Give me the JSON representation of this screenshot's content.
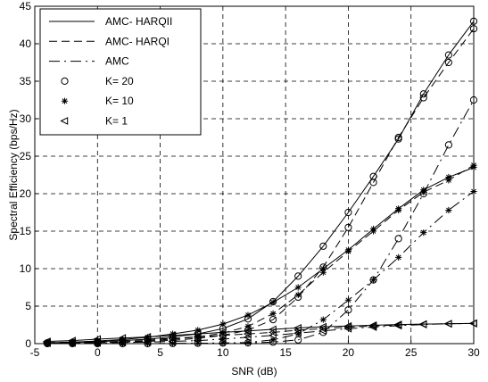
{
  "chart_data": {
    "type": "line",
    "title": "",
    "xlabel": "SNR (dB)",
    "ylabel": "Spectral Efficiency (bps/Hz)",
    "xlim": [
      -5,
      30
    ],
    "ylim": [
      0,
      45
    ],
    "xticks": [
      "-5",
      "0",
      "5",
      "10",
      "15",
      "20",
      "25",
      "30"
    ],
    "yticks": [
      "0",
      "5",
      "10",
      "15",
      "20",
      "25",
      "30",
      "35",
      "40",
      "45"
    ],
    "grid": true,
    "legend_position": "top-left",
    "x": [
      -4,
      -2,
      0,
      2,
      4,
      6,
      8,
      10,
      12,
      14,
      16,
      18,
      20,
      22,
      24,
      26,
      28,
      30
    ],
    "legend": [
      {
        "label": "AMC- HARQII",
        "line": "solid",
        "marker": "none"
      },
      {
        "label": "AMC- HARQI",
        "line": "dashed",
        "marker": "none"
      },
      {
        "label": "AMC",
        "line": "dashdot",
        "marker": "none"
      },
      {
        "label": "K= 20",
        "line": "none",
        "marker": "circle"
      },
      {
        "label": "K= 10",
        "line": "none",
        "marker": "star"
      },
      {
        "label": "K= 1",
        "line": "none",
        "marker": "triangle"
      }
    ],
    "series": [
      {
        "scheme": "AMC- HARQII",
        "K": "20",
        "line": "solid",
        "marker": "circle",
        "values": [
          0.1,
          0.15,
          0.25,
          0.4,
          0.6,
          0.9,
          1.3,
          2.0,
          3.3,
          5.6,
          9.0,
          13.0,
          17.5,
          22.3,
          27.3,
          33.3,
          38.5,
          43.0
        ]
      },
      {
        "scheme": "AMC- HARQII",
        "K": "10",
        "line": "solid",
        "marker": "star",
        "values": [
          0.1,
          0.2,
          0.35,
          0.55,
          0.85,
          1.3,
          1.8,
          2.6,
          3.8,
          5.5,
          7.5,
          10.0,
          12.5,
          15.3,
          18.0,
          20.5,
          22.2,
          23.5
        ]
      },
      {
        "scheme": "AMC- HARQII",
        "K": "1",
        "line": "solid",
        "marker": "triangle",
        "values": [
          0.3,
          0.4,
          0.6,
          0.75,
          0.9,
          1.1,
          1.3,
          1.5,
          1.7,
          1.9,
          2.1,
          2.25,
          2.35,
          2.45,
          2.55,
          2.6,
          2.65,
          2.7
        ]
      },
      {
        "scheme": "AMC- HARQI",
        "K": "20",
        "line": "dashed",
        "marker": "circle",
        "values": [
          0.05,
          0.08,
          0.12,
          0.2,
          0.3,
          0.45,
          0.7,
          1.1,
          1.8,
          3.2,
          6.2,
          10.2,
          15.5,
          21.5,
          27.5,
          32.8,
          37.5,
          42.0
        ]
      },
      {
        "scheme": "AMC- HARQI",
        "K": "10",
        "line": "dashed",
        "marker": "star",
        "values": [
          0.05,
          0.1,
          0.15,
          0.25,
          0.4,
          0.6,
          0.9,
          1.4,
          2.3,
          4.0,
          6.5,
          9.5,
          12.3,
          15.0,
          17.8,
          20.2,
          21.8,
          23.8
        ]
      },
      {
        "scheme": "AMC- HARQI",
        "K": "1",
        "line": "dashed",
        "marker": "triangle",
        "values": [
          0.15,
          0.2,
          0.3,
          0.4,
          0.55,
          0.7,
          0.9,
          1.1,
          1.3,
          1.5,
          1.8,
          2.0,
          2.2,
          2.35,
          2.5,
          2.6,
          2.65,
          2.7
        ]
      },
      {
        "scheme": "AMC",
        "K": "20",
        "line": "dashdot",
        "marker": "circle",
        "values": [
          0.0,
          0.0,
          0.0,
          0.0,
          0.0,
          0.02,
          0.05,
          0.08,
          0.1,
          0.2,
          0.5,
          1.5,
          4.5,
          8.5,
          14.0,
          20.0,
          26.5,
          32.5
        ]
      },
      {
        "scheme": "AMC",
        "K": "10",
        "line": "dashdot",
        "marker": "star",
        "values": [
          0.0,
          0.0,
          0.0,
          0.0,
          0.0,
          0.02,
          0.05,
          0.08,
          0.15,
          0.5,
          1.3,
          3.2,
          5.8,
          8.5,
          11.5,
          14.8,
          17.8,
          20.3
        ]
      },
      {
        "scheme": "AMC",
        "K": "1",
        "line": "dashdot",
        "marker": "triangle",
        "values": [
          0.05,
          0.08,
          0.1,
          0.15,
          0.2,
          0.3,
          0.4,
          0.6,
          0.85,
          1.1,
          1.4,
          1.7,
          2.0,
          2.2,
          2.4,
          2.55,
          2.65,
          2.7
        ]
      }
    ]
  }
}
